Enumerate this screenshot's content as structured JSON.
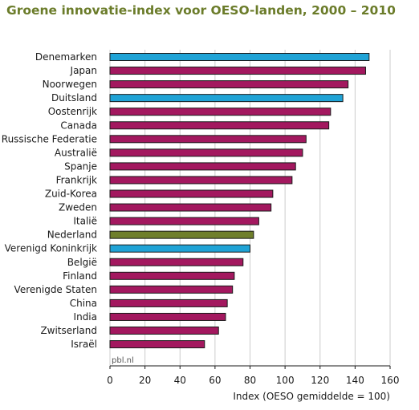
{
  "chart_data": {
    "type": "bar",
    "orientation": "horizontal",
    "title": "Groene innovatie-index voor OESO-landen, 2000 – 2010",
    "xlabel": "Index (OESO gemiddelde = 100)",
    "ylabel": "",
    "source": "pbl.nl",
    "xlim": [
      0,
      160
    ],
    "xticks": [
      "0",
      "20",
      "40",
      "60",
      "80",
      "100",
      "120",
      "140",
      "160"
    ],
    "grid": "vertical",
    "categories": [
      "Denemarken",
      "Japan",
      "Noorwegen",
      "Duitsland",
      "Oostenrijk",
      "Canada",
      "Russische Federatie",
      "Australië",
      "Spanje",
      "Frankrijk",
      "Zuid-Korea",
      "Zweden",
      "Italië",
      "Nederland",
      "Verenigd Koninkrijk",
      "België",
      "Finland",
      "Verenigde Staten",
      "China",
      "India",
      "Zwitserland",
      "Israël"
    ],
    "values": [
      148,
      146,
      136,
      133,
      126,
      125,
      112,
      110,
      106,
      104,
      93,
      92,
      85,
      82,
      80,
      76,
      71,
      70,
      67,
      66,
      62,
      54
    ],
    "bar_colors": [
      "#1fa3d6",
      "#a3185f",
      "#a3185f",
      "#1fa3d6",
      "#a3185f",
      "#a3185f",
      "#a3185f",
      "#a3185f",
      "#a3185f",
      "#a3185f",
      "#a3185f",
      "#a3185f",
      "#a3185f",
      "#6f7f2b",
      "#1fa3d6",
      "#a3185f",
      "#a3185f",
      "#a3185f",
      "#a3185f",
      "#a3185f",
      "#a3185f",
      "#a3185f"
    ]
  },
  "colors": {
    "title": "#6b7c2a",
    "grid": "#cccccc",
    "bar_outline": "#1a1a1a",
    "axis": "#1a1a1a"
  }
}
